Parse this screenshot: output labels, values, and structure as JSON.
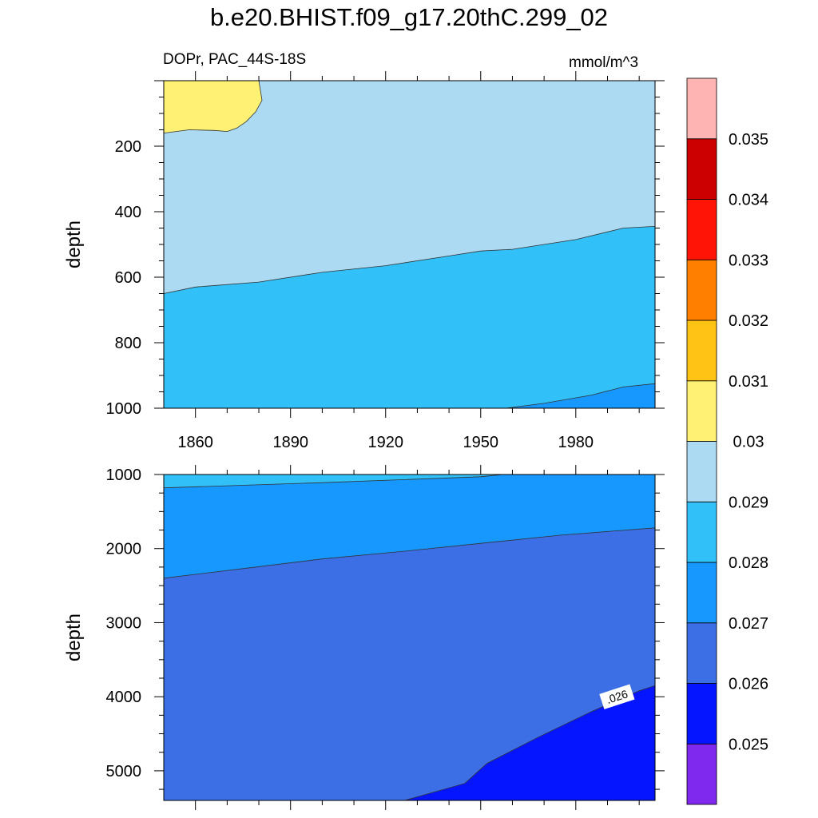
{
  "title": "b.e20.BHIST.f09_g17.20thC.299_02",
  "left_string": "DOPr, PAC_44S-18S",
  "right_string": "mmol/m^3",
  "colors": {
    "levels": [
      "#8029ee",
      "#0515ff",
      "#3c6ee6",
      "#1698ff",
      "#32c0f8",
      "#acdaf2",
      "#fff174",
      "#ffc315",
      "#ff8000",
      "#ff1405",
      "#cc0000",
      "#ffb4b4"
    ]
  },
  "chart_data": [
    {
      "type": "contour",
      "panel": "top",
      "xlabel": "",
      "ylabel": "depth",
      "xlim": [
        1850,
        2005
      ],
      "ylim": [
        0,
        1000
      ],
      "y_inverted": true,
      "x_ticks": [
        1860,
        1890,
        1920,
        1950,
        1980
      ],
      "y_ticks": [
        200,
        400,
        600,
        800,
        1000
      ],
      "regions": [
        {
          "level": "0.030-0.031",
          "color": "#fff174"
        },
        {
          "level": "0.029-0.030",
          "color": "#acdaf2"
        },
        {
          "level": "0.028-0.029",
          "color": "#32c0f8"
        },
        {
          "level": "0.027-0.028",
          "color": "#1698ff"
        }
      ],
      "contours": [
        {
          "value": 0.03,
          "points": [
            [
              1850,
              160
            ],
            [
              1858,
              150
            ],
            [
              1866,
              152
            ],
            [
              1870,
              155
            ],
            [
              1873,
              145
            ],
            [
              1876,
              125
            ],
            [
              1879,
              95
            ],
            [
              1881,
              60
            ],
            [
              1880,
              0
            ]
          ]
        },
        {
          "value": 0.029,
          "points": [
            [
              1850,
              650
            ],
            [
              1860,
              630
            ],
            [
              1880,
              615
            ],
            [
              1900,
              585
            ],
            [
              1920,
              565
            ],
            [
              1940,
              535
            ],
            [
              1950,
              520
            ],
            [
              1960,
              515
            ],
            [
              1980,
              485
            ],
            [
              1995,
              450
            ],
            [
              2005,
              445
            ]
          ]
        },
        {
          "value": 0.028,
          "points": [
            [
              1958,
              1000
            ],
            [
              1970,
              985
            ],
            [
              1985,
              960
            ],
            [
              1995,
              935
            ],
            [
              2005,
              925
            ]
          ]
        }
      ]
    },
    {
      "type": "contour",
      "panel": "bottom",
      "xlabel": "",
      "ylabel": "depth",
      "xlim": [
        1850,
        2005
      ],
      "ylim": [
        1000,
        5400
      ],
      "y_inverted": true,
      "y_ticks": [
        1000,
        2000,
        3000,
        4000,
        5000
      ],
      "contour_label": ".026",
      "regions": [
        {
          "level": "0.028-0.029",
          "color": "#32c0f8"
        },
        {
          "level": "0.027-0.028",
          "color": "#1698ff"
        },
        {
          "level": "0.026-0.027",
          "color": "#3c6ee6"
        },
        {
          "level": "0.025-0.026",
          "color": "#0515ff"
        }
      ],
      "contours": [
        {
          "value": 0.028,
          "points": [
            [
              1850,
              1180
            ],
            [
              1900,
              1110
            ],
            [
              1950,
              1030
            ],
            [
              1957,
              1000
            ]
          ]
        },
        {
          "value": 0.027,
          "points": [
            [
              1850,
              2400
            ],
            [
              1875,
              2270
            ],
            [
              1900,
              2140
            ],
            [
              1925,
              2040
            ],
            [
              1950,
              1930
            ],
            [
              1975,
              1820
            ],
            [
              2005,
              1720
            ]
          ]
        },
        {
          "value": 0.026,
          "points": [
            [
              1926,
              5400
            ],
            [
              1945,
              5170
            ],
            [
              1952,
              4900
            ],
            [
              1968,
              4550
            ],
            [
              1985,
              4200
            ],
            [
              2000,
              3920
            ],
            [
              2005,
              3850
            ]
          ]
        }
      ]
    }
  ],
  "colorbar": {
    "labels": [
      "0.025",
      "0.026",
      "0.027",
      "0.028",
      "0.029",
      "0.03",
      "0.031",
      "0.032",
      "0.033",
      "0.034",
      "0.035"
    ]
  }
}
